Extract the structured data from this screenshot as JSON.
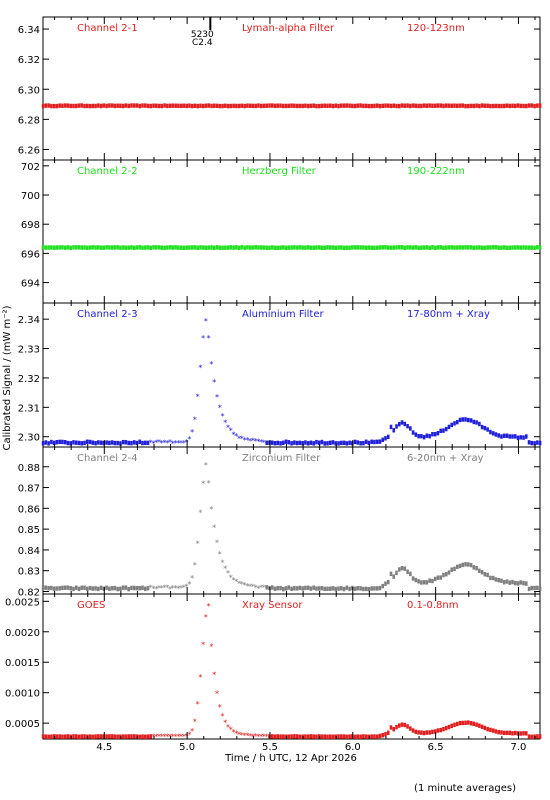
{
  "chart_data": {
    "type": "scatter",
    "x_label": "Time / h UTC, 12 Apr 2026",
    "y_label": "Calibrated Signal / (mW m⁻²)",
    "x_range": [
      4.13,
      7.13
    ],
    "x_ticks": [
      4.5,
      5.0,
      5.5,
      6.0,
      6.5,
      7.0
    ],
    "x_tick_labels": [
      "4.5",
      "5.0",
      "5.5",
      "6.0",
      "6.5",
      "7.0"
    ],
    "footnote": "(1 minute averages)",
    "event_marker": {
      "x": 5.14,
      "label_line1": "5230",
      "label_line2": "C2.4"
    },
    "panels": [
      {
        "channel": "Channel 2-1",
        "filter": "Lyman-alpha Filter",
        "band": "120-123nm",
        "color": "#e02020",
        "y_range": [
          6.253,
          6.348
        ],
        "y_ticks": [
          6.26,
          6.28,
          6.3,
          6.32,
          6.34
        ],
        "y_tick_labels": [
          "6.26",
          "6.28",
          "6.30",
          "6.32",
          "6.34"
        ],
        "profile": {
          "base": 6.289,
          "flare": 0,
          "t": 0,
          "rise": 0.05,
          "decay": 0.1,
          "late": 0,
          "noise": 0.0002
        }
      },
      {
        "channel": "Channel 2-2",
        "filter": "Herzberg Filter",
        "band": "190-222nm",
        "color": "#20e020",
        "y_range": [
          692.6,
          702.4
        ],
        "y_ticks": [
          694,
          696,
          698,
          700,
          702
        ],
        "y_tick_labels": [
          "694",
          "696",
          "698",
          "700",
          "702"
        ],
        "profile": {
          "base": 696.4,
          "flare": 0,
          "t": 0,
          "rise": 0.05,
          "decay": 0.1,
          "late": 0,
          "noise": 0.02
        }
      },
      {
        "channel": "Channel 2-3",
        "filter": "Aluminium Filter",
        "band": "17-80nm + Xray",
        "color": "#2020d8",
        "y_range": [
          2.2965,
          2.3455
        ],
        "y_ticks": [
          2.3,
          2.31,
          2.32,
          2.33,
          2.34
        ],
        "y_tick_labels": [
          "2.30",
          "2.31",
          "2.32",
          "2.33",
          "2.34"
        ],
        "profile": {
          "base": 2.298,
          "flare": 0.042,
          "t": 5.12,
          "rise": 0.04,
          "decay": 0.06,
          "late": 0.0055,
          "noise": 0.0003
        }
      },
      {
        "channel": "Channel 2-4",
        "filter": "Zirconium Filter",
        "band": "6-20nm + Xray",
        "color": "#808080",
        "y_range": [
          0.8188,
          0.8895
        ],
        "y_ticks": [
          0.82,
          0.83,
          0.84,
          0.85,
          0.86,
          0.87,
          0.88
        ],
        "y_tick_labels": [
          "0.82",
          "0.83",
          "0.84",
          "0.85",
          "0.86",
          "0.87",
          "0.88"
        ],
        "profile": {
          "base": 0.8215,
          "flare": 0.06,
          "t": 5.12,
          "rise": 0.04,
          "decay": 0.06,
          "late": 0.008,
          "noise": 0.0004
        }
      },
      {
        "channel": "GOES",
        "filter": "Xray Sensor",
        "band": "0.1-0.8nm",
        "color": "#e02020",
        "y_range": [
          0.00024,
          0.00262
        ],
        "y_ticks": [
          0.0005,
          0.001,
          0.0015,
          0.002,
          0.0025
        ],
        "y_tick_labels": [
          "0.0005",
          "0.0010",
          "0.0015",
          "0.0020",
          "0.0025"
        ],
        "profile": {
          "base": 0.00028,
          "flare": 0.00214,
          "t": 5.13,
          "rise": 0.04,
          "decay": 0.045,
          "late": 0.00016,
          "noise": 4e-06
        }
      }
    ]
  }
}
